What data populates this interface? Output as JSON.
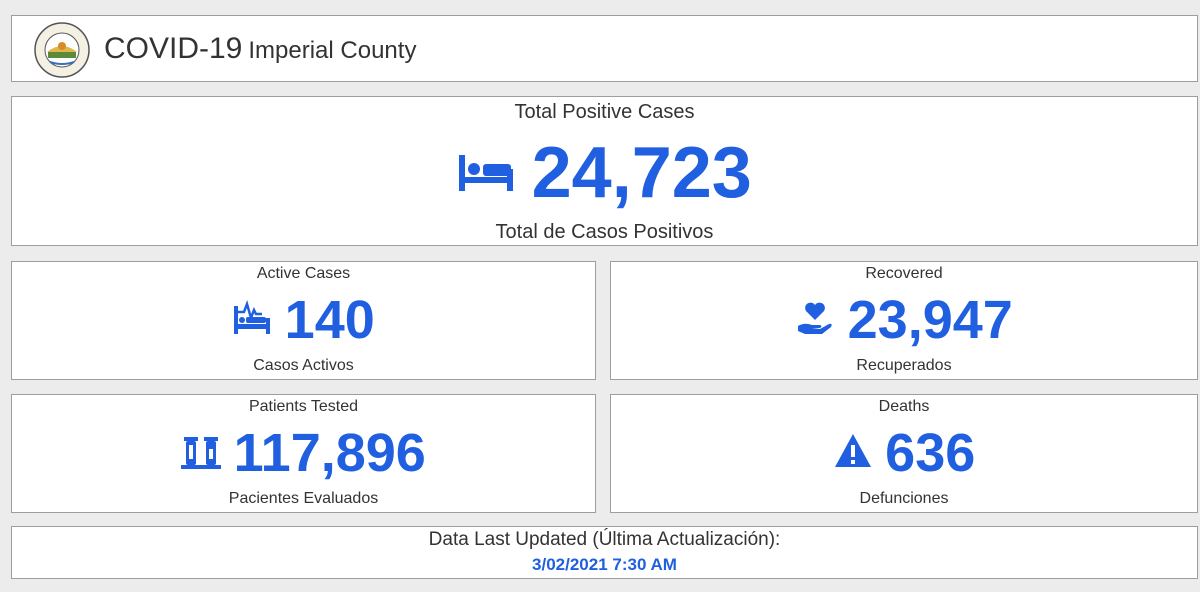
{
  "header": {
    "title": "COVID-19",
    "subtitle": "Imperial County",
    "seal_text_top": "IMPERIAL COUNTY",
    "seal_text_bottom": "CALIFORNIA"
  },
  "colors": {
    "accent": "#1f5fe0",
    "text": "#333333",
    "background": "#ececec",
    "panel": "#ffffff"
  },
  "total": {
    "label_en": "Total Positive Cases",
    "value": "24,723",
    "label_es": "Total de Casos Positivos",
    "icon": "bed-icon"
  },
  "active": {
    "label_en": "Active Cases",
    "value": "140",
    "label_es": "Casos Activos",
    "icon": "hospital-bed-pulse-icon"
  },
  "recovered": {
    "label_en": "Recovered",
    "value": "23,947",
    "label_es": "Recuperados",
    "icon": "hand-holding-heart-icon"
  },
  "tested": {
    "label_en": "Patients Tested",
    "value": "117,896",
    "label_es": "Pacientes Evaluados",
    "icon": "vials-icon"
  },
  "deaths": {
    "label_en": "Deaths",
    "value": "636",
    "label_es": "Defunciones",
    "icon": "warning-icon"
  },
  "updated": {
    "label": "Data Last Updated (Última Actualización):",
    "value": "3/02/2021 7:30 AM"
  }
}
